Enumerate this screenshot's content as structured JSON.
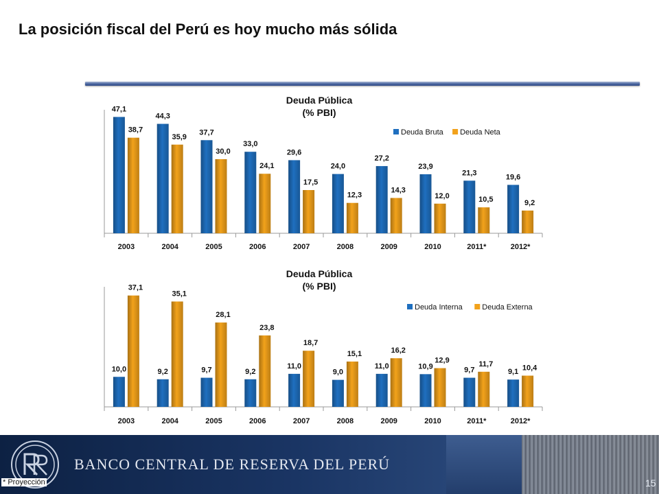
{
  "slide": {
    "title": "La posición fiscal del Perú es hoy mucho más sólida",
    "footnote": "* Proyección",
    "page_number": "15",
    "bank_name": "BANCO CENTRAL DE RESERVA DEL PERÚ",
    "colors": {
      "rule": "#3a5890",
      "series_blue": "#1f6fbf",
      "series_orange": "#f2a21b",
      "footer": "#1a3564"
    }
  },
  "chart_data": [
    {
      "type": "bar",
      "title": "Deuda Pública",
      "subtitle": "(% PBI)",
      "categories": [
        "2003",
        "2004",
        "2005",
        "2006",
        "2007",
        "2008",
        "2009",
        "2010",
        "2011*",
        "2012*"
      ],
      "series": [
        {
          "name": "Deuda Bruta",
          "color": "#1f6fbf",
          "values": [
            47.1,
            44.3,
            37.7,
            33.0,
            29.6,
            24.0,
            27.2,
            23.9,
            21.3,
            19.6
          ],
          "labels": [
            "47,1",
            "44,3",
            "37,7",
            "33,0",
            "29,6",
            "24,0",
            "27,2",
            "23,9",
            "21,3",
            "19,6"
          ]
        },
        {
          "name": "Deuda Neta",
          "color": "#f2a21b",
          "values": [
            38.7,
            35.9,
            30.0,
            24.1,
            17.5,
            12.3,
            14.3,
            12.0,
            10.5,
            9.2
          ],
          "labels": [
            "38,7",
            "35,9",
            "30,0",
            "24,1",
            "17,5",
            "12,3",
            "14,3",
            "12,0",
            "10,5",
            "9,2"
          ]
        }
      ],
      "ylim": [
        0,
        50
      ],
      "legend": "top-right",
      "grid": false
    },
    {
      "type": "bar",
      "title": "Deuda Pública",
      "subtitle": "(% PBI)",
      "categories": [
        "2003",
        "2004",
        "2005",
        "2006",
        "2007",
        "2008",
        "2009",
        "2010",
        "2011*",
        "2012*"
      ],
      "series": [
        {
          "name": "Deuda Interna",
          "color": "#1f6fbf",
          "values": [
            10.0,
            9.2,
            9.7,
            9.2,
            11.0,
            9.0,
            11.0,
            10.9,
            9.7,
            9.1
          ],
          "labels": [
            "10,0",
            "9,2",
            "9,7",
            "9,2",
            "11,0",
            "9,0",
            "11,0",
            "10,9",
            "9,7",
            "9,1"
          ]
        },
        {
          "name": "Deuda Externa",
          "color": "#f2a21b",
          "values": [
            37.1,
            35.1,
            28.1,
            23.8,
            18.7,
            15.1,
            16.2,
            12.9,
            11.7,
            10.4
          ],
          "labels": [
            "37,1",
            "35,1",
            "28,1",
            "23,8",
            "18,7",
            "15,1",
            "16,2",
            "12,9",
            "11,7",
            "10,4"
          ]
        }
      ],
      "ylim": [
        0,
        40
      ],
      "legend": "top-right",
      "grid": false
    }
  ]
}
